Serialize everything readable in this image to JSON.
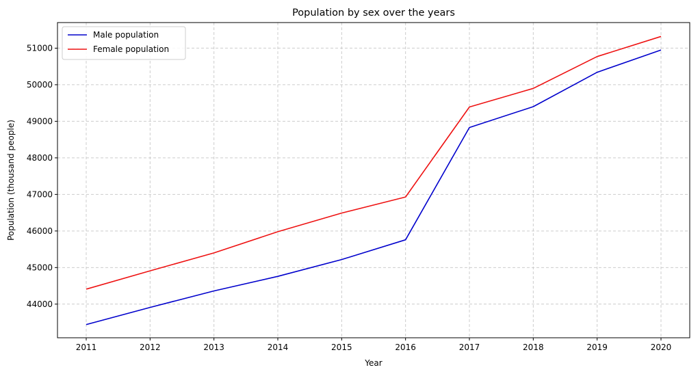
{
  "chart_data": {
    "type": "line",
    "title": "Population by sex over the years",
    "xlabel": "Year",
    "ylabel": "Population (thousand people)",
    "x": [
      "2011",
      "2012",
      "2013",
      "2014",
      "2015",
      "2016",
      "2017",
      "2018",
      "2019",
      "2020"
    ],
    "xlim": [
      2010.55,
      2020.45
    ],
    "ylim": [
      43080,
      51700
    ],
    "yticks": [
      "44000",
      "45000",
      "46000",
      "47000",
      "48000",
      "49000",
      "50000",
      "51000"
    ],
    "grid": true,
    "legend_position": "upper-left",
    "series": [
      {
        "name": "Male population",
        "color": "#0000cc",
        "values": [
          43440,
          43910,
          44360,
          44760,
          45220,
          45760,
          48830,
          49400,
          50340,
          50950
        ]
      },
      {
        "name": "Female population",
        "color": "#ee1111",
        "values": [
          44410,
          44910,
          45400,
          45980,
          46490,
          46930,
          49390,
          49900,
          50770,
          51320
        ]
      }
    ]
  }
}
